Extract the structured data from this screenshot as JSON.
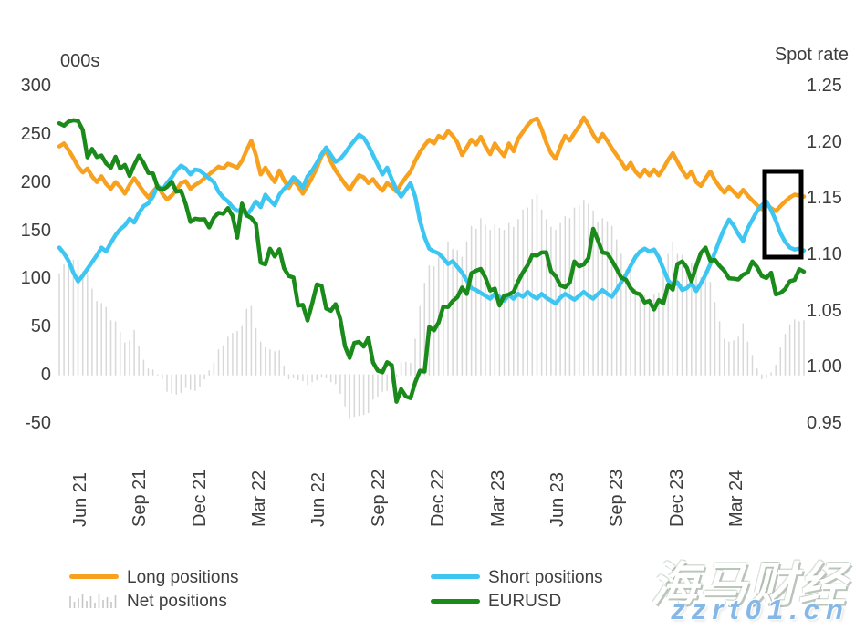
{
  "chart_data": {
    "type": "line+bar combo (weekly, May 2021 - May 2024)",
    "title": "",
    "left_axis": {
      "title": "000s",
      "ticks": [
        "300",
        "250",
        "200",
        "150",
        "100",
        "50",
        "0",
        "-50"
      ],
      "min": -50,
      "max": 300
    },
    "right_axis": {
      "title": "Spot rate",
      "ticks": [
        "1.25",
        "1.20",
        "1.15",
        "1.10",
        "1.05",
        "1.00",
        "0.95"
      ],
      "min": 0.95,
      "max": 1.25
    },
    "x_axis": {
      "ticks": [
        "Jun 21",
        "Sep 21",
        "Dec 21",
        "Mar 22",
        "Jun 22",
        "Sep 22",
        "Dec 22",
        "Mar 23",
        "Jun 23",
        "Sep 23",
        "Dec 23",
        "Mar 24"
      ]
    },
    "grid": "off",
    "legend_position": "bottom",
    "net_positions_note": "gray bars = Long positions minus Short positions (left axis, 000s)",
    "series": [
      {
        "name": "Long positions",
        "type": "line",
        "axis": "left",
        "color": "#F7A11E",
        "values": [
          237,
          240,
          233,
          225,
          216,
          210,
          214,
          206,
          200,
          206,
          198,
          193,
          200,
          195,
          188,
          197,
          204,
          197,
          190,
          184,
          190,
          196,
          188,
          182,
          186,
          192,
          199,
          201,
          193,
          197,
          200,
          204,
          208,
          212,
          216,
          214,
          219,
          217,
          215,
          222,
          233,
          243,
          228,
          208,
          215,
          207,
          200,
          212,
          202,
          194,
          202,
          196,
          188,
          196,
          205,
          215,
          227,
          233,
          221,
          212,
          205,
          198,
          192,
          200,
          207,
          205,
          199,
          203,
          196,
          191,
          199,
          195,
          190,
          198,
          205,
          211,
          222,
          231,
          238,
          244,
          240,
          248,
          245,
          253,
          248,
          241,
          228,
          236,
          244,
          239,
          247,
          237,
          229,
          240,
          233,
          227,
          240,
          232,
          245,
          252,
          259,
          264,
          266,
          255,
          241,
          230,
          224,
          237,
          248,
          243,
          251,
          258,
          267,
          259,
          249,
          242,
          250,
          243,
          235,
          228,
          221,
          213,
          220,
          211,
          206,
          213,
          207,
          213,
          207,
          214,
          223,
          230,
          221,
          212,
          205,
          211,
          200,
          196,
          204,
          211,
          202,
          195,
          189,
          195,
          190,
          185,
          192,
          186,
          181,
          176,
          172,
          177,
          173,
          170,
          175,
          180,
          184,
          187,
          186,
          185
        ]
      },
      {
        "name": "Short positions",
        "type": "line",
        "axis": "left",
        "color": "#3EC6F3",
        "values": [
          132,
          126,
          118,
          106,
          97,
          103,
          110,
          117,
          124,
          132,
          128,
          137,
          145,
          151,
          155,
          162,
          158,
          168,
          175,
          178,
          185,
          196,
          192,
          199,
          205,
          212,
          217,
          214,
          208,
          213,
          212,
          208,
          204,
          200,
          190,
          184,
          180,
          174,
          170,
          172,
          165,
          172,
          180,
          174,
          187,
          181,
          176,
          187,
          193,
          198,
          205,
          201,
          194,
          206,
          212,
          220,
          229,
          236,
          228,
          221,
          224,
          230,
          237,
          243,
          249,
          246,
          238,
          228,
          218,
          208,
          215,
          203,
          192,
          185,
          192,
          199,
          185,
          160,
          143,
          131,
          128,
          126,
          121,
          115,
          118,
          112,
          106,
          98,
          90,
          88,
          85,
          82,
          79,
          84,
          81,
          77,
          83,
          79,
          84,
          81,
          86,
          82,
          79,
          84,
          80,
          77,
          74,
          80,
          84,
          81,
          78,
          82,
          86,
          82,
          79,
          84,
          88,
          84,
          81,
          88,
          96,
          104,
          113,
          122,
          128,
          131,
          128,
          130,
          122,
          110,
          98,
          92,
          96,
          88,
          90,
          95,
          87,
          95,
          104,
          115,
          127,
          140,
          152,
          161,
          155,
          146,
          139,
          152,
          161,
          170,
          176,
          180,
          171,
          160,
          147,
          138,
          132,
          130,
          131,
          129
        ]
      },
      {
        "name": "EURUSD",
        "type": "line",
        "axis": "right",
        "color": "#1A8A1A",
        "values": [
          1.2166,
          1.2145,
          1.2181,
          1.2193,
          1.2187,
          1.2106,
          1.1863,
          1.1938,
          1.1865,
          1.1879,
          1.1808,
          1.177,
          1.1868,
          1.1762,
          1.1795,
          1.1697,
          1.1795,
          1.1878,
          1.1812,
          1.1725,
          1.172,
          1.1595,
          1.1574,
          1.16,
          1.1646,
          1.1558,
          1.1566,
          1.1445,
          1.1289,
          1.1317,
          1.1311,
          1.1313,
          1.124,
          1.1327,
          1.137,
          1.1362,
          1.1411,
          1.1342,
          1.1148,
          1.1452,
          1.1347,
          1.1324,
          1.127,
          1.0926,
          1.0911,
          1.105,
          1.0981,
          1.1046,
          1.0877,
          1.0808,
          1.0794,
          1.0545,
          1.0551,
          1.0412,
          1.0563,
          1.0733,
          1.072,
          1.0518,
          1.0499,
          1.0557,
          1.0425,
          1.0182,
          1.008,
          1.0213,
          1.0222,
          1.018,
          1.0258,
          1.0039,
          0.9966,
          0.9952,
          1.0041,
          1.0016,
          0.969,
          0.9802,
          0.9737,
          0.9721,
          0.9861,
          0.9965,
          0.9958,
          1.0354,
          1.0325,
          1.0395,
          1.0535,
          1.0531,
          1.0586,
          1.0619,
          1.0705,
          1.0648,
          1.0833,
          1.0855,
          1.087,
          1.0794,
          1.0679,
          1.0695,
          1.0546,
          1.0632,
          1.0643,
          1.0667,
          1.076,
          1.084,
          1.0903,
          1.0994,
          1.0989,
          1.1017,
          1.1018,
          1.0849,
          1.0805,
          1.0725,
          1.0707,
          1.0749,
          1.0937,
          1.0893,
          1.091,
          1.0968,
          1.1227,
          1.1126,
          1.1016,
          1.1009,
          1.0945,
          1.0873,
          1.0794,
          1.0775,
          1.07,
          1.0658,
          1.0645,
          1.0573,
          1.0586,
          1.051,
          1.0594,
          1.0565,
          1.073,
          1.0686,
          1.0914,
          1.0937,
          1.0882,
          1.0761,
          1.0895,
          1.1013,
          1.106,
          1.0944,
          1.0951,
          1.0897,
          1.0854,
          1.0787,
          1.0784,
          1.0777,
          1.082,
          1.0838,
          1.0937,
          1.0888,
          1.0808,
          1.079,
          1.0837,
          1.0644,
          1.0656,
          1.0693,
          1.0762,
          1.0772,
          1.0868,
          1.0846
        ]
      },
      {
        "name": "Net positions",
        "type": "bar",
        "axis": "left",
        "color": "#D8D8D8",
        "derived": "long_minus_short"
      }
    ],
    "annotation": {
      "highlight_box": {
        "x": 838,
        "y": 188,
        "width": 40,
        "height": 94,
        "stroke": "#000000",
        "stroke_width": 5
      }
    }
  },
  "legend": {
    "long_label": "Long positions",
    "net_label": "Net positions",
    "short_label": "Short positions",
    "eurusd_label": "EURUSD"
  },
  "watermark": {
    "line1": "海马财经",
    "line2": "zzrt01.cn"
  }
}
